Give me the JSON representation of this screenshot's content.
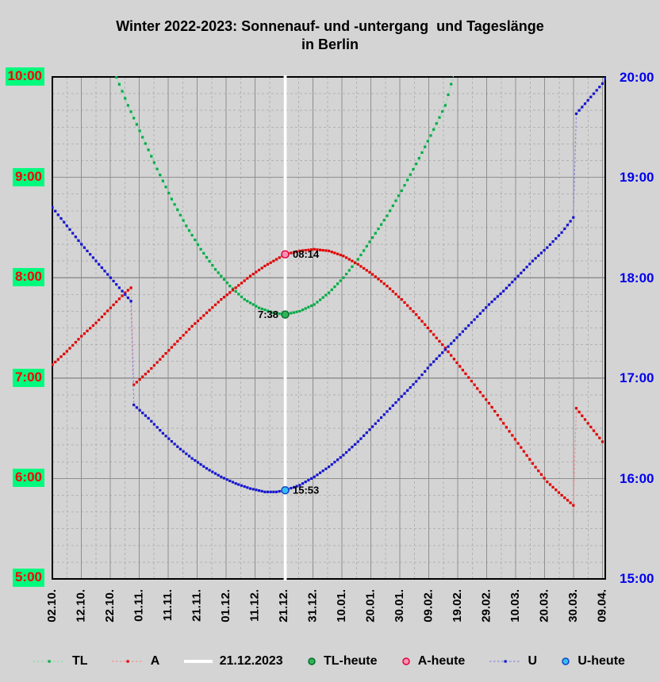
{
  "title": {
    "line1": "Winter 2022-2023: Sonnenauf- und -untergang  und Tageslänge",
    "line2": "in Berlin"
  },
  "colors": {
    "background": "#d4d4d4",
    "grid_major": "#8f8f8f",
    "grid_minor": "#b2b2b2",
    "border": "#000000",
    "axis_left_text": "#ff0000",
    "axis_left_highlight": "#00fa7d",
    "axis_right_text": "#0000ee",
    "today_line": "#ffffff",
    "title_text": "#000000"
  },
  "chart_data": {
    "type": "line",
    "title": "Winter 2022-2023: Sonnenauf- und -untergang und Tageslänge in Berlin",
    "xlabel": "",
    "ylabel": "",
    "grid": "on",
    "legend_position": "bottom",
    "x_tick_labels": [
      "02.10.",
      "12.10.",
      "22.10.",
      "01.11.",
      "11.11.",
      "21.11.",
      "01.12.",
      "11.12.",
      "21.12.",
      "31.12.",
      "10.01.",
      "20.01.",
      "30.01.",
      "09.02.",
      "19.02.",
      "29.02.",
      "10.03.",
      "20.03.",
      "30.03.",
      "09.04."
    ],
    "y_left": {
      "labels": [
        "10:00",
        "9:00",
        "8:00",
        "7:00",
        "6:00",
        "5:00"
      ],
      "range": [
        "5:00",
        "10:00"
      ],
      "applies_to": "Tageslänge und Sonnenaufgang"
    },
    "y_right": {
      "labels": [
        "20:00",
        "19:00",
        "18:00",
        "17:00",
        "16:00",
        "15:00"
      ],
      "range": [
        "15:00",
        "20:00"
      ],
      "applies_to": "Sonnenuntergang"
    },
    "today_line": {
      "date": "21.12.",
      "label": "21.12.2023",
      "color": "#ffffff"
    },
    "series": [
      {
        "name": "TL",
        "axis": "left",
        "dot_color": "#00ac46",
        "dash_color": "#82e2a8",
        "points": [
          [
            "23.10.",
            "10:04"
          ],
          [
            "28.10.",
            "9:43"
          ],
          [
            "02.11.",
            "9:24"
          ],
          [
            "07.11.",
            "9:05"
          ],
          [
            "12.11.",
            "8:47"
          ],
          [
            "17.11.",
            "8:31"
          ],
          [
            "22.11.",
            "8:17"
          ],
          [
            "27.11.",
            "8:05"
          ],
          [
            "02.12.",
            "7:55"
          ],
          [
            "07.12.",
            "7:47"
          ],
          [
            "12.12.",
            "7:42"
          ],
          [
            "17.12.",
            "7:39"
          ],
          [
            "21.12.",
            "7:38"
          ],
          [
            "26.12.",
            "7:40"
          ],
          [
            "31.12.",
            "7:44"
          ],
          [
            "05.01.",
            "7:51"
          ],
          [
            "10.01.",
            "8:00"
          ],
          [
            "15.01.",
            "8:11"
          ],
          [
            "20.01.",
            "8:24"
          ],
          [
            "25.01.",
            "8:37"
          ],
          [
            "30.01.",
            "8:52"
          ],
          [
            "04.02.",
            "9:08"
          ],
          [
            "09.02.",
            "9:25"
          ],
          [
            "14.02.",
            "9:43"
          ],
          [
            "17.02.",
            "10:02"
          ]
        ]
      },
      {
        "name": "A",
        "axis": "left",
        "dot_color": "#e00000",
        "dash_color": "#f09090",
        "points": [
          [
            "02.10.",
            "7:08"
          ],
          [
            "07.10.",
            "7:16"
          ],
          [
            "12.10.",
            "7:25"
          ],
          [
            "17.10.",
            "7:33"
          ],
          [
            "22.10.",
            "7:42"
          ],
          [
            "27.10.",
            "7:51"
          ],
          [
            "29.10.",
            "7:54"
          ],
          [
            "30.10.",
            "6:56"
          ],
          [
            "04.11.",
            "7:04"
          ],
          [
            "09.11.",
            "7:13"
          ],
          [
            "14.11.",
            "7:22"
          ],
          [
            "19.11.",
            "7:31"
          ],
          [
            "24.11.",
            "7:39"
          ],
          [
            "29.11.",
            "7:47"
          ],
          [
            "04.12.",
            "7:54"
          ],
          [
            "09.12.",
            "8:01"
          ],
          [
            "14.12.",
            "8:07"
          ],
          [
            "21.12.",
            "8:14"
          ],
          [
            "26.12.",
            "8:16"
          ],
          [
            "31.12.",
            "8:17"
          ],
          [
            "05.01.",
            "8:16"
          ],
          [
            "10.01.",
            "8:13"
          ],
          [
            "15.01.",
            "8:08"
          ],
          [
            "20.01.",
            "8:02"
          ],
          [
            "25.01.",
            "7:55"
          ],
          [
            "30.01.",
            "7:47"
          ],
          [
            "04.02.",
            "7:38"
          ],
          [
            "09.02.",
            "7:28"
          ],
          [
            "14.02.",
            "7:18"
          ],
          [
            "19.02.",
            "7:07"
          ],
          [
            "24.02.",
            "6:56"
          ],
          [
            "01.03.",
            "6:45"
          ],
          [
            "06.03.",
            "6:33"
          ],
          [
            "11.03.",
            "6:21"
          ],
          [
            "16.03.",
            "6:09"
          ],
          [
            "21.03.",
            "5:58"
          ],
          [
            "26.03.",
            "5:50"
          ],
          [
            "30.03.",
            "5:44"
          ],
          [
            "31.03.",
            "6:42"
          ],
          [
            "04.04.",
            "6:33"
          ],
          [
            "09.04.",
            "6:22"
          ]
        ]
      },
      {
        "name": "U",
        "axis": "right",
        "dot_color": "#1616cd",
        "dash_color": "#8787e0",
        "points": [
          [
            "02.10.",
            "18:42"
          ],
          [
            "07.10.",
            "18:31"
          ],
          [
            "12.10.",
            "18:20"
          ],
          [
            "17.10.",
            "18:10"
          ],
          [
            "22.10.",
            "18:00"
          ],
          [
            "27.10.",
            "17:50"
          ],
          [
            "29.10.",
            "17:46"
          ],
          [
            "30.10.",
            "16:44"
          ],
          [
            "04.11.",
            "16:36"
          ],
          [
            "09.11.",
            "16:27"
          ],
          [
            "14.11.",
            "16:19"
          ],
          [
            "19.11.",
            "16:12"
          ],
          [
            "24.11.",
            "16:06"
          ],
          [
            "29.11.",
            "16:01"
          ],
          [
            "04.12.",
            "15:57"
          ],
          [
            "09.12.",
            "15:54"
          ],
          [
            "14.12.",
            "15:52"
          ],
          [
            "18.12.",
            "15:52"
          ],
          [
            "21.12.",
            "15:53"
          ],
          [
            "26.12.",
            "15:56"
          ],
          [
            "31.12.",
            "16:01"
          ],
          [
            "05.01.",
            "16:07"
          ],
          [
            "10.01.",
            "16:14"
          ],
          [
            "15.01.",
            "16:22"
          ],
          [
            "20.01.",
            "16:31"
          ],
          [
            "25.01.",
            "16:40"
          ],
          [
            "30.01.",
            "16:49"
          ],
          [
            "04.02.",
            "16:58"
          ],
          [
            "09.02.",
            "17:08"
          ],
          [
            "14.02.",
            "17:17"
          ],
          [
            "19.02.",
            "17:26"
          ],
          [
            "24.02.",
            "17:35"
          ],
          [
            "01.03.",
            "17:44"
          ],
          [
            "06.03.",
            "17:52"
          ],
          [
            "11.03.",
            "18:01"
          ],
          [
            "16.03.",
            "18:10"
          ],
          [
            "21.03.",
            "18:18"
          ],
          [
            "26.03.",
            "18:27"
          ],
          [
            "30.03.",
            "18:36"
          ],
          [
            "31.03.",
            "19:38"
          ],
          [
            "04.04.",
            "19:46"
          ],
          [
            "09.04.",
            "19:56"
          ],
          [
            "10.04.",
            "19:59"
          ]
        ]
      }
    ],
    "today_points": [
      {
        "name": "TL-heute",
        "date": "21.12.",
        "time": "7:38",
        "axis": "left",
        "label": "7:38",
        "label_side": "left",
        "fill": "#2fb457",
        "stroke": "#066d2c"
      },
      {
        "name": "A-heute",
        "date": "21.12.",
        "time": "08:14",
        "axis": "left",
        "label": "08:14",
        "label_side": "right",
        "fill": "#ff93b4",
        "stroke": "#e0003e"
      },
      {
        "name": "U-heute",
        "date": "21.12.",
        "time": "15:53",
        "axis": "right",
        "label": "15:53",
        "label_side": "right",
        "fill": "#38bdf2",
        "stroke": "#0b46c8"
      }
    ],
    "legend": [
      {
        "label": "TL",
        "type": "line-dot",
        "color": "#82e2a8",
        "dot": "#00ac46"
      },
      {
        "label": "A",
        "type": "line-dot",
        "color": "#f09090",
        "dot": "#e00000"
      },
      {
        "label": "21.12.2023",
        "type": "solid-line",
        "color": "#ffffff",
        "dot": "#ffffff"
      },
      {
        "label": "TL-heute",
        "type": "circle",
        "color": "#066d2c",
        "dot": "#2fb457"
      },
      {
        "label": "A-heute",
        "type": "circle",
        "color": "#e0003e",
        "dot": "#ff93b4"
      },
      {
        "label": "U",
        "type": "line-dot",
        "color": "#8787e0",
        "dot": "#1616cd"
      },
      {
        "label": "U-heute",
        "type": "circle",
        "color": "#0b46c8",
        "dot": "#38bdf2"
      }
    ]
  }
}
